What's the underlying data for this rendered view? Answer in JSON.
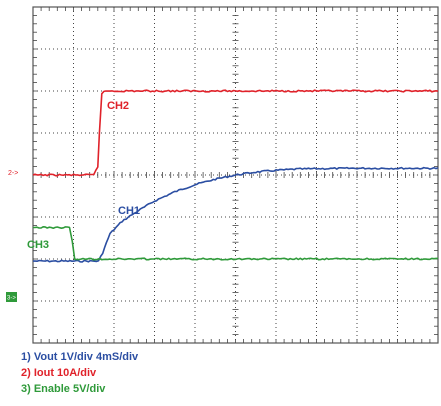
{
  "chart_data": {
    "type": "line",
    "x_divisions": 10,
    "y_divisions": 8,
    "grid": true,
    "series": [
      {
        "name": "CH1",
        "color": "#2b4ea2",
        "points": [
          [
            0,
            6.05
          ],
          [
            1.62,
            6.05
          ],
          [
            1.72,
            5.85
          ],
          [
            1.9,
            5.4
          ],
          [
            2.2,
            5.1
          ],
          [
            2.6,
            4.85
          ],
          [
            3.0,
            4.62
          ],
          [
            3.5,
            4.4
          ],
          [
            4.0,
            4.23
          ],
          [
            4.5,
            4.1
          ],
          [
            5.0,
            4.0
          ],
          [
            5.5,
            3.93
          ],
          [
            6.0,
            3.89
          ],
          [
            6.5,
            3.86
          ],
          [
            7.0,
            3.85
          ],
          [
            8.0,
            3.84
          ],
          [
            9.0,
            3.84
          ],
          [
            10.0,
            3.84
          ]
        ]
      },
      {
        "name": "CH2",
        "color": "#e0222a",
        "points": [
          [
            0,
            4.0
          ],
          [
            1.5,
            4.0
          ],
          [
            1.6,
            3.8
          ],
          [
            1.64,
            3.0
          ],
          [
            1.7,
            2.05
          ],
          [
            1.8,
            2.0
          ],
          [
            10.0,
            2.0
          ]
        ]
      },
      {
        "name": "CH3",
        "color": "#2f9a3a",
        "points": [
          [
            0,
            5.25
          ],
          [
            0.9,
            5.25
          ],
          [
            0.97,
            5.6
          ],
          [
            1.03,
            6.0
          ],
          [
            2.0,
            6.0
          ],
          [
            10.0,
            6.0
          ]
        ]
      }
    ],
    "channel_markers": [
      "2->",
      "3->"
    ]
  },
  "legend": [
    {
      "text": "1) Vout 1V/div 4mS/div",
      "color": "#2b4ea2"
    },
    {
      "text": "2) Iout 10A/div",
      "color": "#e0222a"
    },
    {
      "text": "3) Enable 5V/div",
      "color": "#2f9a3a"
    }
  ]
}
